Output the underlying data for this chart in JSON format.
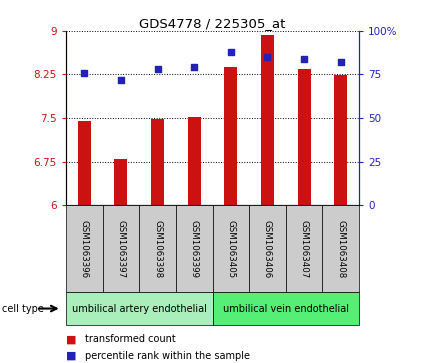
{
  "title": "GDS4778 / 225305_at",
  "samples": [
    "GSM1063396",
    "GSM1063397",
    "GSM1063398",
    "GSM1063399",
    "GSM1063405",
    "GSM1063406",
    "GSM1063407",
    "GSM1063408"
  ],
  "bar_values": [
    7.45,
    6.8,
    7.48,
    7.52,
    8.37,
    8.93,
    8.35,
    8.24
  ],
  "percentile_values": [
    76,
    72,
    78,
    79,
    88,
    85,
    84,
    82
  ],
  "ylim_left": [
    6,
    9
  ],
  "ylim_right": [
    0,
    100
  ],
  "yticks_left": [
    6,
    6.75,
    7.5,
    8.25,
    9
  ],
  "yticks_right": [
    0,
    25,
    50,
    75,
    100
  ],
  "bar_color": "#cc1111",
  "dot_color": "#2222bb",
  "cell_type_groups": [
    {
      "label": "umbilical artery endothelial",
      "indices": [
        0,
        1,
        2,
        3
      ],
      "color": "#aaeebb"
    },
    {
      "label": "umbilical vein endothelial",
      "indices": [
        4,
        5,
        6,
        7
      ],
      "color": "#55ee77"
    }
  ],
  "legend_bar_label": "transformed count",
  "legend_dot_label": "percentile rank within the sample",
  "bg_color": "#ffffff",
  "sample_box_color": "#cccccc",
  "figsize": [
    4.25,
    3.63
  ],
  "dpi": 100
}
